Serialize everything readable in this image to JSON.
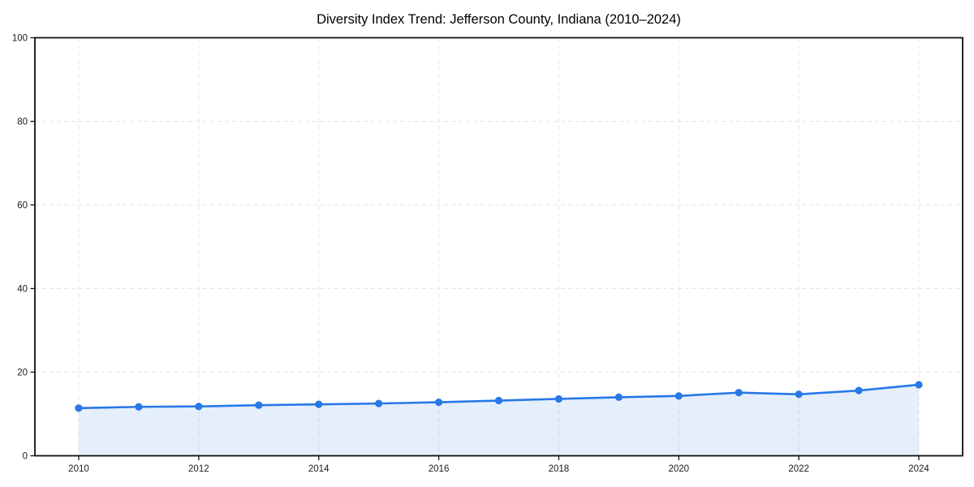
{
  "chart_data": {
    "type": "line",
    "title": "Diversity Index Trend: Jefferson County, Indiana (2010–2024)",
    "x": [
      2010,
      2011,
      2012,
      2013,
      2014,
      2015,
      2016,
      2017,
      2018,
      2019,
      2020,
      2021,
      2022,
      2023,
      2024
    ],
    "values": [
      11.4,
      11.7,
      11.8,
      12.1,
      12.3,
      12.5,
      12.8,
      13.2,
      13.6,
      14.0,
      14.3,
      15.1,
      14.7,
      15.6,
      17.0
    ],
    "xlabel": "",
    "ylabel": "",
    "xlim": [
      2009.27,
      2024.73
    ],
    "ylim": [
      0,
      100
    ],
    "xticks": [
      2010,
      2012,
      2014,
      2016,
      2018,
      2020,
      2022,
      2024
    ],
    "yticks": [
      0,
      20,
      40,
      60,
      80,
      100
    ],
    "grid": true,
    "grid_style": "dashed",
    "legend_position": "none",
    "marker": "circle",
    "area_fill": true,
    "colors": {
      "line": "#2878e8",
      "marker": "#2878e8",
      "area_fill": "#2878e8",
      "area_fill_opacity": 0.12,
      "grid": "#e4e4e4",
      "axis": "#111111",
      "tick_text": "#1a1a1a",
      "title_text": "#000000",
      "background": "#ffffff"
    }
  }
}
